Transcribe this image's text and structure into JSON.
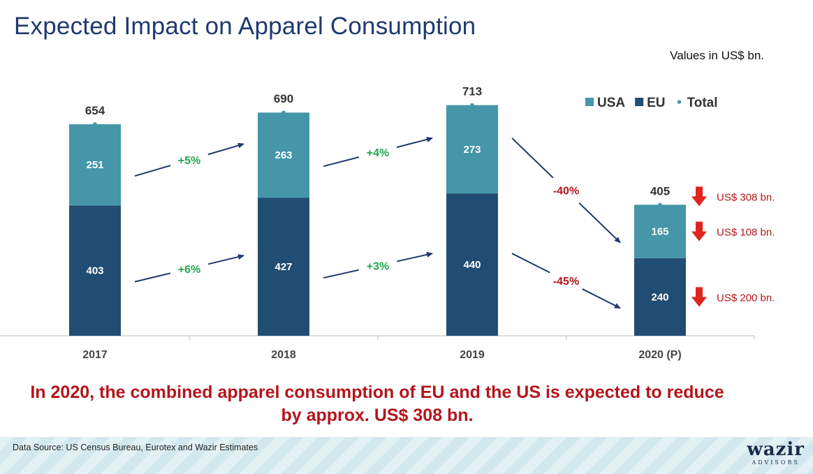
{
  "header": {
    "title": "Expected Impact on Apparel Consumption",
    "units_note": "Values in US$ bn."
  },
  "legend": [
    {
      "label": "USA",
      "color": "#4496a8",
      "marker": "square"
    },
    {
      "label": "EU",
      "color": "#214d73",
      "marker": "square"
    },
    {
      "label": "Total",
      "color": "#4496a8",
      "marker": "dot"
    }
  ],
  "chart_data": {
    "type": "bar",
    "stacked": true,
    "categories": [
      "2017",
      "2018",
      "2019",
      "2020 (P)"
    ],
    "series": [
      {
        "name": "EU",
        "values": [
          403,
          427,
          440,
          240
        ],
        "color": "#214d73"
      },
      {
        "name": "USA",
        "values": [
          251,
          263,
          273,
          165
        ],
        "color": "#4496a8"
      }
    ],
    "totals": [
      654,
      690,
      713,
      405
    ],
    "ylim": [
      0,
      820
    ],
    "legend_position": "top-right",
    "growth_labels": {
      "USA": [
        "+5%",
        "+4%",
        "-40%"
      ],
      "EU": [
        "+6%",
        "+3%",
        "-45%"
      ]
    },
    "reduction_callouts": [
      {
        "text": "US$ 308 bn."
      },
      {
        "text": "US$ 108 bn."
      },
      {
        "text": "US$ 200 bn."
      }
    ],
    "colors": {
      "positive": "#1ea84a",
      "negative": "#b4151b",
      "arrow_down": "#e2241e",
      "arrow_line": "#1f3a6e"
    }
  },
  "headline": {
    "line1": "In 2020, the combined apparel consumption of EU and the US is expected to reduce",
    "line2": "by approx. US$ 308 bn."
  },
  "footer": {
    "source": "Data Source: US Census Bureau, Eurotex and Wazir Estimates",
    "logo_word": "wazir",
    "logo_sub": "ADVISORS"
  }
}
